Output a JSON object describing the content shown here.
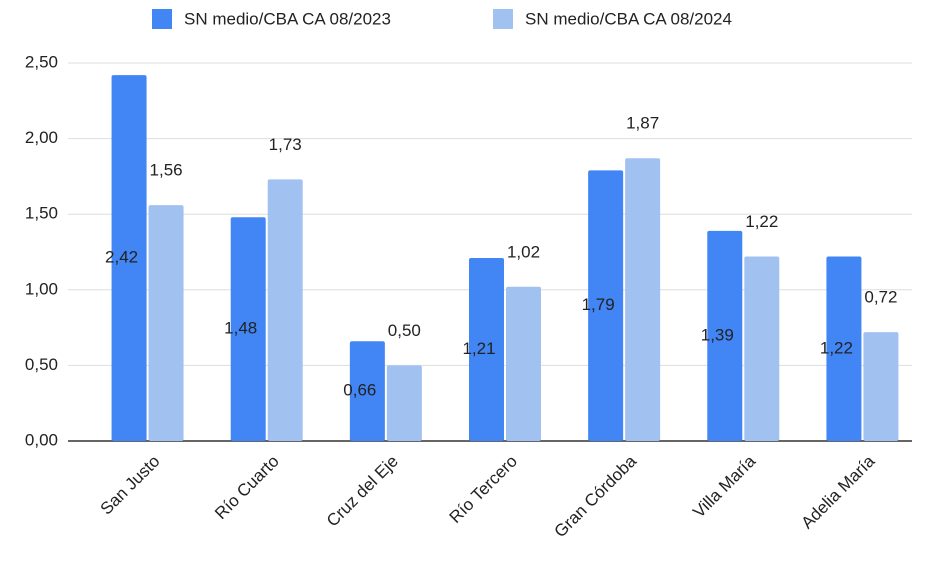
{
  "chart_data": {
    "type": "bar",
    "categories": [
      "San Justo",
      "Río Cuarto",
      "Cruz del Eje",
      "Río Tercero",
      "Gran Córdoba",
      "Villa María",
      "Adelia María"
    ],
    "series": [
      {
        "name": "SN medio/CBA CA 08/2023",
        "color": "#4285f4",
        "values": [
          2.42,
          1.48,
          0.66,
          1.21,
          1.79,
          1.39,
          1.22
        ],
        "value_labels": [
          "2,42",
          "1,48",
          "0,66",
          "1,21",
          "1,79",
          "1,39",
          "1,22"
        ]
      },
      {
        "name": "SN medio/CBA CA 08/2024",
        "color": "#a1c2f1",
        "values": [
          1.56,
          1.73,
          0.5,
          1.02,
          1.87,
          1.22,
          0.72
        ],
        "value_labels": [
          "1,56",
          "1,73",
          "0,50",
          "1,02",
          "1,87",
          "1,22",
          "0,72"
        ]
      }
    ],
    "ylim": [
      0,
      2.5
    ],
    "yticks": [
      {
        "value": 0,
        "label": "0,00"
      },
      {
        "value": 0.5,
        "label": "0,50"
      },
      {
        "value": 1,
        "label": "1,00"
      },
      {
        "value": 1.5,
        "label": "1,50"
      },
      {
        "value": 2,
        "label": "2,00"
      },
      {
        "value": 2.5,
        "label": "2,50"
      }
    ],
    "grid": true,
    "legend": "top"
  }
}
